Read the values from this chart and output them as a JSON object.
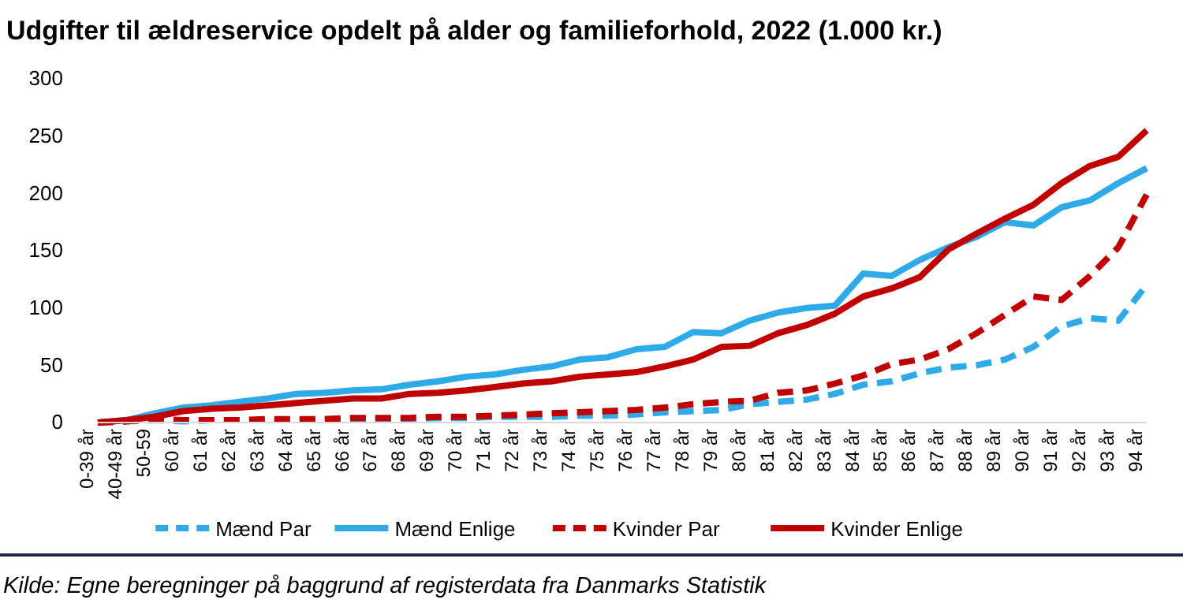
{
  "chart_data": {
    "type": "line",
    "title": "Udgifter til ældreservice opdelt på alder og familieforhold, 2022 (1.000 kr.)",
    "categories": [
      "0-39 år",
      "40-49 år",
      "50-59",
      "60 år",
      "61 år",
      "62 år",
      "63 år",
      "64 år",
      "65 år",
      "66 år",
      "67 år",
      "68 år",
      "69 år",
      "70 år",
      "71 år",
      "72 år",
      "73 år",
      "74 år",
      "75 år",
      "76 år",
      "77 år",
      "78 år",
      "79 år",
      "80 år",
      "81 år",
      "82 år",
      "83 år",
      "84 år",
      "85 år",
      "86 år",
      "87 år",
      "88 år",
      "89 år",
      "90 år",
      "91 år",
      "92 år",
      "93 år",
      "94 år"
    ],
    "series": [
      {
        "name": "Mænd Par",
        "color": "#2eaae8",
        "line_style": "dashed",
        "values": [
          0,
          1,
          2,
          1,
          2,
          2,
          2,
          2,
          3,
          3,
          3,
          3,
          4,
          4,
          5,
          5,
          5,
          6,
          6,
          7,
          9,
          10,
          11,
          16,
          18,
          20,
          25,
          33,
          36,
          43,
          48,
          50,
          55,
          66,
          84,
          91,
          89,
          120
        ]
      },
      {
        "name": "Mænd Enlige",
        "color": "#2eaae8",
        "line_style": "solid",
        "values": [
          0,
          2,
          8,
          13,
          15,
          18,
          21,
          25,
          26,
          28,
          29,
          33,
          36,
          40,
          42,
          46,
          49,
          55,
          57,
          64,
          66,
          79,
          78,
          89,
          96,
          100,
          102,
          130,
          128,
          142,
          153,
          162,
          175,
          172,
          188,
          194,
          209,
          222
        ]
      },
      {
        "name": "Kvinder Par",
        "color": "#c00000",
        "line_style": "dashed",
        "values": [
          0,
          1,
          3,
          2,
          2,
          2,
          3,
          3,
          3,
          4,
          4,
          4,
          5,
          5,
          6,
          7,
          8,
          9,
          10,
          11,
          13,
          16,
          18,
          19,
          26,
          28,
          34,
          41,
          51,
          55,
          64,
          78,
          94,
          110,
          107,
          128,
          153,
          199
        ]
      },
      {
        "name": "Kvinder Enlige",
        "color": "#c00000",
        "line_style": "solid",
        "values": [
          0,
          2,
          5,
          10,
          12,
          13,
          15,
          17,
          19,
          21,
          21,
          25,
          26,
          28,
          31,
          34,
          36,
          40,
          42,
          44,
          49,
          55,
          66,
          67,
          78,
          85,
          95,
          110,
          117,
          127,
          151,
          165,
          178,
          190,
          209,
          224,
          232,
          255
        ]
      }
    ],
    "ylim": [
      0,
      300
    ],
    "yticks": [
      0,
      50,
      100,
      150,
      200,
      250,
      300
    ],
    "grid": false,
    "legend": "bottom",
    "marker": "none",
    "annotations": [
      "Kilde: Egne beregninger på baggrund af registerdata fra Danmarks Statistik"
    ]
  }
}
